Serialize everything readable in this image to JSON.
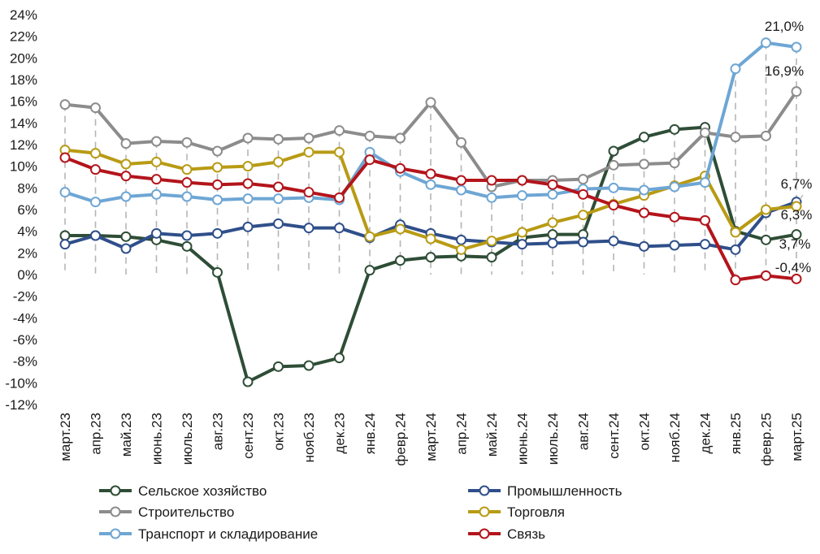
{
  "chart_data": {
    "type": "line",
    "title": "",
    "xlabel": "",
    "ylabel": "",
    "ylim": [
      -12,
      24
    ],
    "y_ticks": [
      "-12%",
      "-10%",
      "-8%",
      "-6%",
      "-4%",
      "-2%",
      "0%",
      "2%",
      "4%",
      "6%",
      "8%",
      "10%",
      "12%",
      "14%",
      "16%",
      "18%",
      "20%",
      "22%",
      "24%"
    ],
    "y_tick_values": [
      -12,
      -10,
      -8,
      -6,
      -4,
      -2,
      0,
      2,
      4,
      6,
      8,
      10,
      12,
      14,
      16,
      18,
      20,
      22,
      24
    ],
    "categories": [
      "март.23",
      "апр.23",
      "май.23",
      "июнь.23",
      "июль.23",
      "авг.23",
      "сент.23",
      "окт.23",
      "нояб.23",
      "дек.23",
      "янв.24",
      "февр.24",
      "март.24",
      "апр.24",
      "май.24",
      "июнь.24",
      "июль.24",
      "авг.24",
      "сент.24",
      "окт.24",
      "нояб.24",
      "дек.24",
      "янв.25",
      "февр.25",
      "март.25"
    ],
    "grid": "vertical dashed drop lines",
    "legend_position": "bottom",
    "series": [
      {
        "name": "Сельское хозяйство",
        "color": "#2e4d36",
        "values": [
          3.6,
          3.6,
          3.5,
          3.2,
          2.6,
          0.2,
          -9.9,
          -8.5,
          -8.4,
          -7.7,
          0.4,
          1.3,
          1.6,
          1.7,
          1.6,
          3.4,
          3.7,
          3.7,
          11.4,
          12.7,
          13.4,
          13.6,
          4.0,
          3.2,
          3.7
        ]
      },
      {
        "name": "Промышленность",
        "color": "#2f4f8a",
        "values": [
          2.8,
          3.6,
          2.4,
          3.8,
          3.6,
          3.8,
          4.4,
          4.7,
          4.3,
          4.3,
          3.4,
          4.6,
          3.8,
          3.2,
          3.0,
          2.8,
          2.9,
          3.0,
          3.1,
          2.6,
          2.7,
          2.8,
          2.3,
          5.7,
          6.7
        ]
      },
      {
        "name": "Строительство",
        "color": "#8c8c8c",
        "values": [
          15.7,
          15.4,
          12.1,
          12.3,
          12.2,
          11.4,
          12.6,
          12.5,
          12.6,
          13.3,
          12.8,
          12.6,
          15.9,
          12.2,
          8.1,
          8.7,
          8.7,
          8.8,
          10.1,
          10.2,
          10.3,
          13.1,
          12.7,
          12.8,
          16.9
        ]
      },
      {
        "name": "Торговля",
        "color": "#b89b14",
        "values": [
          11.5,
          11.2,
          10.2,
          10.4,
          9.7,
          9.9,
          10.0,
          10.4,
          11.3,
          11.3,
          3.5,
          4.2,
          3.3,
          2.3,
          3.1,
          3.9,
          4.8,
          5.5,
          6.5,
          7.3,
          8.2,
          9.1,
          3.9,
          6.0,
          6.3
        ]
      },
      {
        "name": "Транспорт и складирование",
        "color": "#6ea6d4",
        "values": [
          7.6,
          6.7,
          7.2,
          7.4,
          7.2,
          6.9,
          7.0,
          7.0,
          7.1,
          6.9,
          11.3,
          9.5,
          8.3,
          7.8,
          7.1,
          7.3,
          7.4,
          7.9,
          8.0,
          7.8,
          8.1,
          8.5,
          19.0,
          21.4,
          21.0
        ]
      },
      {
        "name": "Связь",
        "color": "#b3141b",
        "values": [
          10.8,
          9.7,
          9.1,
          8.8,
          8.5,
          8.3,
          8.4,
          8.1,
          7.6,
          7.1,
          10.6,
          9.8,
          9.3,
          8.7,
          8.7,
          8.7,
          8.3,
          7.4,
          6.4,
          5.7,
          5.3,
          5.0,
          -0.5,
          -0.1,
          -0.4
        ]
      }
    ],
    "data_labels": [
      {
        "text": "21,0%",
        "series": "Транспорт и складирование",
        "category": "март.25"
      },
      {
        "text": "16,9%",
        "series": "Строительство",
        "category": "март.25"
      },
      {
        "text": "6,7%",
        "series": "Промышленность",
        "category": "март.25"
      },
      {
        "text": "6,3%",
        "series": "Торговля",
        "category": "март.25"
      },
      {
        "text": "3,7%",
        "series": "Сельское хозяйство",
        "category": "март.25"
      },
      {
        "text": "-0,4%",
        "series": "Связь",
        "category": "март.25"
      }
    ]
  }
}
